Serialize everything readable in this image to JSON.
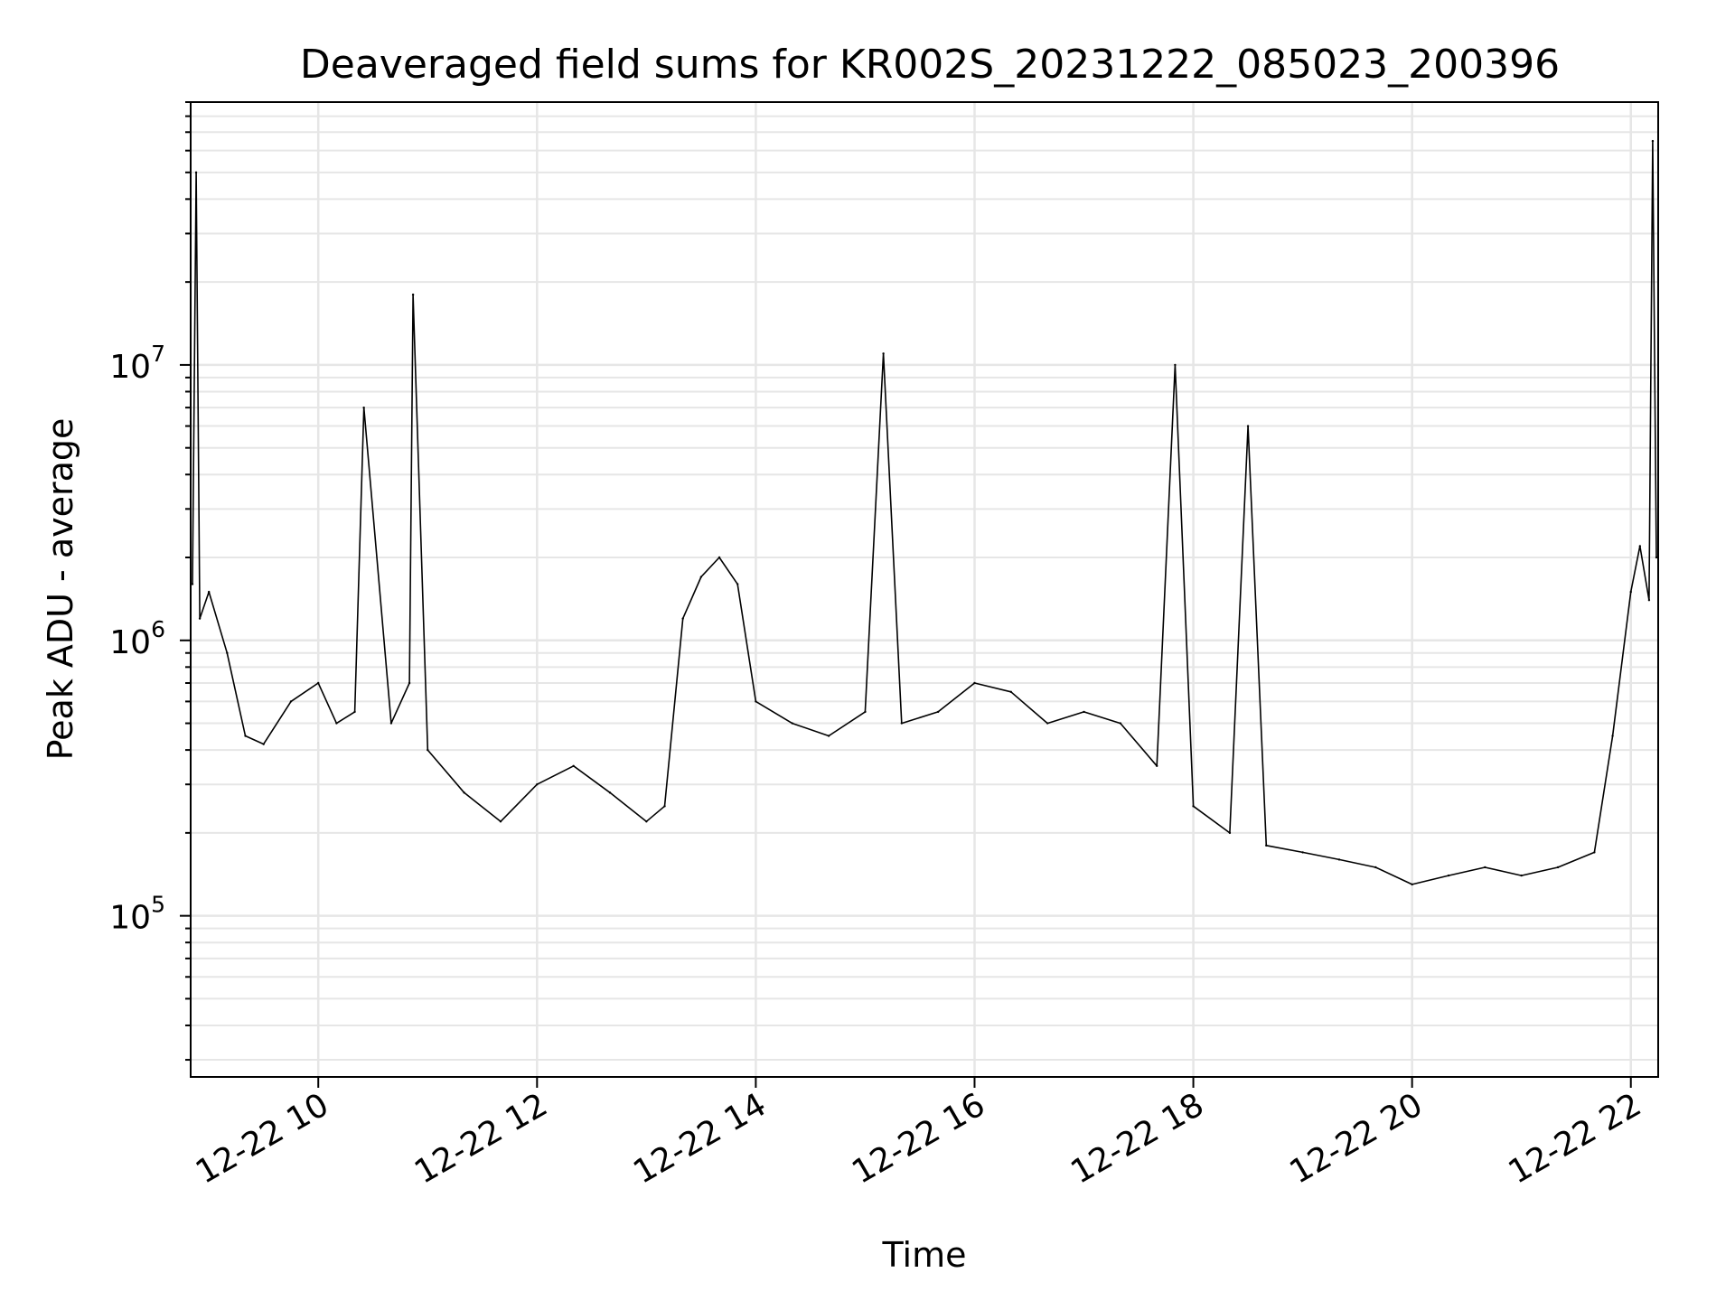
{
  "chart_data": {
    "type": "line",
    "title": "Deaveraged field sums for KR002S_20231222_085023_200396",
    "xlabel": "Time",
    "ylabel": "Peak ADU - average",
    "y_scale": "log",
    "ylim": [
      26000,
      90000000
    ],
    "xlim": [
      "2023-12-22 08:50",
      "2023-12-22 22:15"
    ],
    "grid": true,
    "legend": "none",
    "line_color": "#000000",
    "x_ticks": [
      {
        "value": "2023-12-22 10:00",
        "label": "12-22 10"
      },
      {
        "value": "2023-12-22 12:00",
        "label": "12-22 12"
      },
      {
        "value": "2023-12-22 14:00",
        "label": "12-22 14"
      },
      {
        "value": "2023-12-22 16:00",
        "label": "12-22 16"
      },
      {
        "value": "2023-12-22 18:00",
        "label": "12-22 18"
      },
      {
        "value": "2023-12-22 20:00",
        "label": "12-22 20"
      },
      {
        "value": "2023-12-22 22:00",
        "label": "12-22 22"
      }
    ],
    "y_ticks": [
      {
        "value": 100000,
        "base": "10",
        "exp": "5"
      },
      {
        "value": 1000000,
        "base": "10",
        "exp": "6"
      },
      {
        "value": 10000000,
        "base": "10",
        "exp": "7"
      }
    ],
    "series": [
      {
        "x": [
          "2023-12-22 08:51",
          "2023-12-22 08:53",
          "2023-12-22 08:55",
          "2023-12-22 09:00",
          "2023-12-22 09:10",
          "2023-12-22 09:20",
          "2023-12-22 09:30",
          "2023-12-22 09:45",
          "2023-12-22 10:00",
          "2023-12-22 10:10",
          "2023-12-22 10:20",
          "2023-12-22 10:25",
          "2023-12-22 10:40",
          "2023-12-22 10:50",
          "2023-12-22 10:52",
          "2023-12-22 11:00",
          "2023-12-22 11:20",
          "2023-12-22 11:40",
          "2023-12-22 12:00",
          "2023-12-22 12:20",
          "2023-12-22 12:40",
          "2023-12-22 13:00",
          "2023-12-22 13:10",
          "2023-12-22 13:20",
          "2023-12-22 13:30",
          "2023-12-22 13:40",
          "2023-12-22 13:50",
          "2023-12-22 14:00",
          "2023-12-22 14:20",
          "2023-12-22 14:40",
          "2023-12-22 15:00",
          "2023-12-22 15:10",
          "2023-12-22 15:20",
          "2023-12-22 15:40",
          "2023-12-22 16:00",
          "2023-12-22 16:20",
          "2023-12-22 16:40",
          "2023-12-22 17:00",
          "2023-12-22 17:20",
          "2023-12-22 17:40",
          "2023-12-22 17:50",
          "2023-12-22 18:00",
          "2023-12-22 18:20",
          "2023-12-22 18:30",
          "2023-12-22 18:40",
          "2023-12-22 19:00",
          "2023-12-22 19:20",
          "2023-12-22 19:40",
          "2023-12-22 20:00",
          "2023-12-22 20:20",
          "2023-12-22 20:40",
          "2023-12-22 21:00",
          "2023-12-22 21:20",
          "2023-12-22 21:40",
          "2023-12-22 21:50",
          "2023-12-22 22:00",
          "2023-12-22 22:05",
          "2023-12-22 22:10",
          "2023-12-22 22:12",
          "2023-12-22 22:14"
        ],
        "y": [
          1600000,
          50000000,
          1200000,
          1500000,
          900000,
          450000,
          420000,
          600000,
          700000,
          500000,
          550000,
          7000000,
          500000,
          700000,
          18000000,
          400000,
          280000,
          220000,
          300000,
          350000,
          280000,
          220000,
          250000,
          1200000,
          1700000,
          2000000,
          1600000,
          600000,
          500000,
          450000,
          550000,
          11000000,
          500000,
          550000,
          700000,
          650000,
          500000,
          550000,
          500000,
          350000,
          10000000,
          250000,
          200000,
          6000000,
          180000,
          170000,
          160000,
          150000,
          130000,
          140000,
          150000,
          140000,
          150000,
          170000,
          450000,
          1500000,
          2200000,
          1400000,
          65000000,
          2000000
        ]
      }
    ]
  }
}
